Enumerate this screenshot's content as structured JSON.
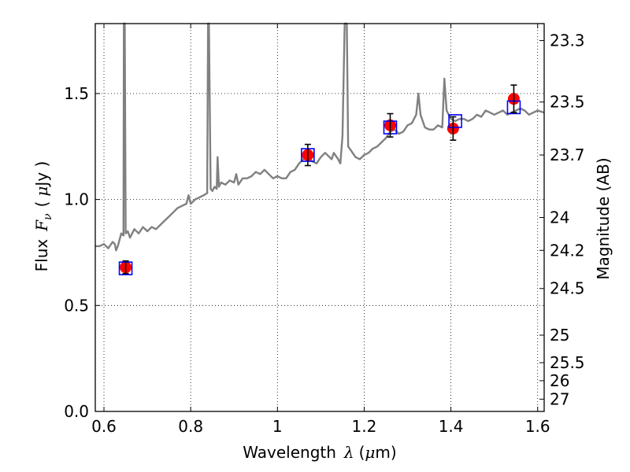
{
  "chart_data": {
    "type": "line",
    "xlabel": {
      "prefix": "Wavelength",
      "symbol": "λ",
      "unit_open": "(",
      "unit_mu": "μ",
      "unit_rest": "m)"
    },
    "ylabel": {
      "prefix": "Flux",
      "symbol": "F",
      "subscript": "ν",
      "unit_open": "(",
      "unit_mu": "μ",
      "unit_rest": "Jy )"
    },
    "y2label": "Magnitude (AB)",
    "xlim": [
      0.58,
      1.615
    ],
    "ylim": [
      0.0,
      1.83
    ],
    "grid": true,
    "grid_style": "dotted",
    "x_ticks": [
      {
        "value": 0.6,
        "label": "0.6"
      },
      {
        "value": 0.8,
        "label": "0.8"
      },
      {
        "value": 1.0,
        "label": "1"
      },
      {
        "value": 1.2,
        "label": "1.2"
      },
      {
        "value": 1.4,
        "label": "1.4"
      },
      {
        "value": 1.6,
        "label": "1.6"
      }
    ],
    "y_ticks": [
      {
        "value": 0.0,
        "label": "0.0"
      },
      {
        "value": 0.5,
        "label": "0.5"
      },
      {
        "value": 1.0,
        "label": "1.0"
      },
      {
        "value": 1.5,
        "label": "1.5"
      }
    ],
    "mag_ticks": [
      {
        "label": "23.3",
        "flux": 1.75
      },
      {
        "label": "23.5",
        "flux": 1.46
      },
      {
        "label": "23.7",
        "flux": 1.21
      },
      {
        "label": "24",
        "flux": 0.915
      },
      {
        "label": "24.2",
        "flux": 0.76
      },
      {
        "label": "24.5",
        "flux": 0.58
      },
      {
        "label": "25",
        "flux": 0.36
      },
      {
        "label": "25.5",
        "flux": 0.23
      },
      {
        "label": "26",
        "flux": 0.145
      },
      {
        "label": "27",
        "flux": 0.058
      }
    ],
    "series": [
      {
        "kind": "model_spectrum",
        "color": "#808080",
        "points": [
          [
            0.58,
            0.78
          ],
          [
            0.59,
            0.78
          ],
          [
            0.6,
            0.79
          ],
          [
            0.61,
            0.77
          ],
          [
            0.62,
            0.8
          ],
          [
            0.625,
            0.79
          ],
          [
            0.628,
            0.76
          ],
          [
            0.632,
            0.78
          ],
          [
            0.64,
            0.84
          ],
          [
            0.645,
            0.83
          ],
          [
            0.646,
            1.83
          ],
          [
            0.648,
            1.83
          ],
          [
            0.65,
            0.84
          ],
          [
            0.655,
            0.85
          ],
          [
            0.66,
            0.82
          ],
          [
            0.67,
            0.86
          ],
          [
            0.68,
            0.84
          ],
          [
            0.69,
            0.87
          ],
          [
            0.7,
            0.85
          ],
          [
            0.71,
            0.87
          ],
          [
            0.72,
            0.86
          ],
          [
            0.73,
            0.88
          ],
          [
            0.74,
            0.9
          ],
          [
            0.75,
            0.92
          ],
          [
            0.76,
            0.94
          ],
          [
            0.77,
            0.96
          ],
          [
            0.78,
            0.97
          ],
          [
            0.79,
            0.98
          ],
          [
            0.795,
            1.02
          ],
          [
            0.8,
            0.98
          ],
          [
            0.81,
            1.0
          ],
          [
            0.82,
            1.01
          ],
          [
            0.83,
            1.02
          ],
          [
            0.838,
            1.03
          ],
          [
            0.84,
            1.83
          ],
          [
            0.842,
            1.83
          ],
          [
            0.846,
            1.05
          ],
          [
            0.85,
            1.04
          ],
          [
            0.855,
            1.06
          ],
          [
            0.86,
            1.05
          ],
          [
            0.862,
            1.2
          ],
          [
            0.865,
            1.06
          ],
          [
            0.87,
            1.08
          ],
          [
            0.88,
            1.07
          ],
          [
            0.89,
            1.09
          ],
          [
            0.9,
            1.08
          ],
          [
            0.905,
            1.12
          ],
          [
            0.91,
            1.07
          ],
          [
            0.92,
            1.1
          ],
          [
            0.93,
            1.1
          ],
          [
            0.94,
            1.11
          ],
          [
            0.95,
            1.13
          ],
          [
            0.96,
            1.12
          ],
          [
            0.97,
            1.14
          ],
          [
            0.98,
            1.12
          ],
          [
            0.99,
            1.1
          ],
          [
            1.0,
            1.11
          ],
          [
            1.01,
            1.1
          ],
          [
            1.02,
            1.1
          ],
          [
            1.03,
            1.13
          ],
          [
            1.04,
            1.14
          ],
          [
            1.05,
            1.17
          ],
          [
            1.06,
            1.19
          ],
          [
            1.07,
            1.2
          ],
          [
            1.08,
            1.18
          ],
          [
            1.09,
            1.17
          ],
          [
            1.1,
            1.2
          ],
          [
            1.11,
            1.22
          ],
          [
            1.12,
            1.2
          ],
          [
            1.125,
            1.19
          ],
          [
            1.13,
            1.22
          ],
          [
            1.14,
            1.19
          ],
          [
            1.145,
            1.17
          ],
          [
            1.15,
            1.3
          ],
          [
            1.155,
            1.83
          ],
          [
            1.16,
            1.83
          ],
          [
            1.163,
            1.25
          ],
          [
            1.17,
            1.23
          ],
          [
            1.18,
            1.2
          ],
          [
            1.19,
            1.19
          ],
          [
            1.2,
            1.21
          ],
          [
            1.21,
            1.22
          ],
          [
            1.22,
            1.24
          ],
          [
            1.23,
            1.25
          ],
          [
            1.24,
            1.27
          ],
          [
            1.25,
            1.29
          ],
          [
            1.26,
            1.32
          ],
          [
            1.27,
            1.33
          ],
          [
            1.28,
            1.31
          ],
          [
            1.29,
            1.32
          ],
          [
            1.3,
            1.35
          ],
          [
            1.31,
            1.36
          ],
          [
            1.32,
            1.4
          ],
          [
            1.325,
            1.5
          ],
          [
            1.33,
            1.4
          ],
          [
            1.34,
            1.34
          ],
          [
            1.35,
            1.33
          ],
          [
            1.36,
            1.33
          ],
          [
            1.37,
            1.35
          ],
          [
            1.38,
            1.34
          ],
          [
            1.385,
            1.57
          ],
          [
            1.39,
            1.42
          ],
          [
            1.4,
            1.38
          ],
          [
            1.41,
            1.37
          ],
          [
            1.42,
            1.38
          ],
          [
            1.43,
            1.38
          ],
          [
            1.44,
            1.37
          ],
          [
            1.45,
            1.38
          ],
          [
            1.46,
            1.4
          ],
          [
            1.47,
            1.39
          ],
          [
            1.48,
            1.42
          ],
          [
            1.49,
            1.41
          ],
          [
            1.5,
            1.4
          ],
          [
            1.51,
            1.41
          ],
          [
            1.52,
            1.42
          ],
          [
            1.53,
            1.4
          ],
          [
            1.54,
            1.41
          ],
          [
            1.55,
            1.42
          ],
          [
            1.56,
            1.43
          ],
          [
            1.57,
            1.42
          ],
          [
            1.58,
            1.4
          ],
          [
            1.59,
            1.41
          ],
          [
            1.6,
            1.42
          ],
          [
            1.615,
            1.41
          ]
        ]
      },
      {
        "kind": "observed_photometry",
        "color": "#ff0000",
        "marker": "circle",
        "x": [
          0.65,
          1.07,
          1.26,
          1.405,
          1.545
        ],
        "y": [
          0.68,
          1.21,
          1.35,
          1.335,
          1.475
        ],
        "yerr": [
          0.03,
          0.05,
          0.055,
          0.055,
          0.065
        ]
      },
      {
        "kind": "model_photometry",
        "color": "#0000ff",
        "marker": "square",
        "x": [
          0.65,
          1.07,
          1.26,
          1.41,
          1.545
        ],
        "y": [
          0.675,
          1.21,
          1.34,
          1.37,
          1.435
        ]
      }
    ]
  }
}
